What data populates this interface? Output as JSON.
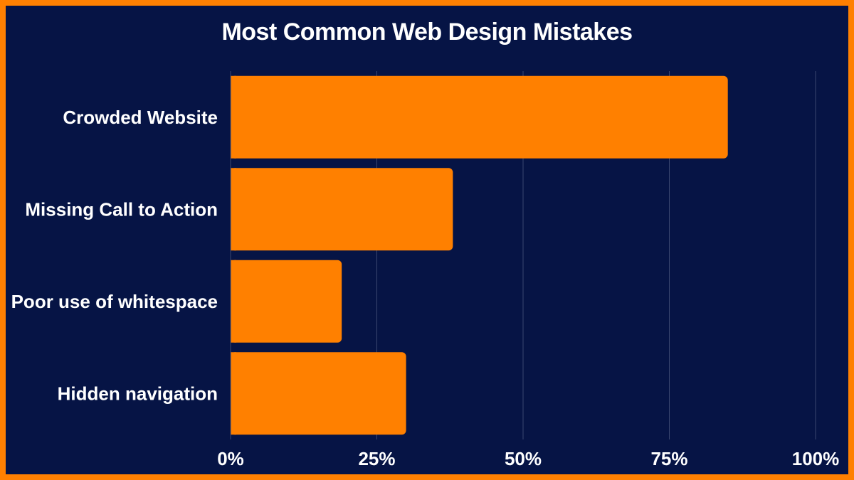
{
  "chart_data": {
    "type": "bar",
    "orientation": "horizontal",
    "title": "Most Common Web Design Mistakes",
    "categories": [
      "Crowded Website",
      "Missing Call to Action",
      "Poor use of whitespace",
      "Hidden navigation"
    ],
    "values": [
      85,
      38,
      19,
      30
    ],
    "xlim": [
      0,
      100
    ],
    "xticks": [
      "0%",
      "25%",
      "50%",
      "75%",
      "100%"
    ],
    "xlabel": "",
    "ylabel": "",
    "grid": "vertical",
    "legend": "none",
    "colors": {
      "bar": "#ff8000",
      "background": "#061445",
      "grid": "#3a4670",
      "text": "#ffffff",
      "border": "#ff8000"
    }
  }
}
